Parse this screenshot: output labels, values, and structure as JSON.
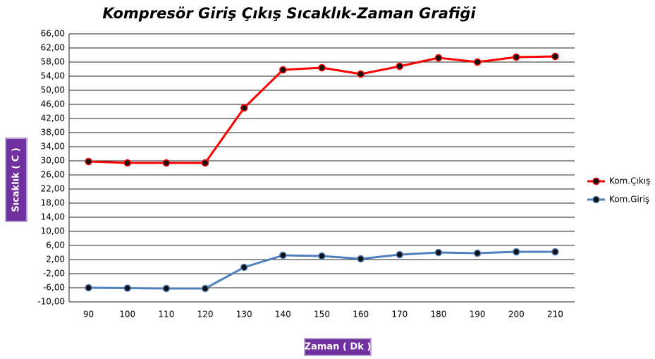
{
  "chart_data": {
    "type": "line",
    "title": "Kompresör Giriş Çıkış Sıcaklık-Zaman Grafiği",
    "x_label": "Zaman ( Dk )",
    "y_label": "Sıcaklık ( C )",
    "categories": [
      "90",
      "100",
      "110",
      "120",
      "130",
      "140",
      "150",
      "160",
      "170",
      "180",
      "190",
      "200",
      "210"
    ],
    "series": [
      {
        "name": "Kom.Çıkış",
        "color": "#ff0000",
        "values": [
          29.8,
          29.4,
          29.4,
          29.4,
          45,
          55.8,
          56.4,
          54.6,
          56.8,
          59.2,
          58,
          59.4,
          59.6
        ]
      },
      {
        "name": "Kom.Giriş",
        "color": "#4f81bd",
        "values": [
          -6,
          -6.1,
          -6.2,
          -6.2,
          -0.2,
          3.2,
          3,
          2.2,
          3.4,
          4,
          3.8,
          4.2,
          4.2
        ]
      }
    ],
    "ylim": [
      -10,
      66
    ],
    "yticks": [
      {
        "value": 66,
        "label": "66,00"
      },
      {
        "value": 62,
        "label": "62,00"
      },
      {
        "value": 58,
        "label": "58,00"
      },
      {
        "value": 54,
        "label": "54,00"
      },
      {
        "value": 50,
        "label": "50,00"
      },
      {
        "value": 46,
        "label": "46,00"
      },
      {
        "value": 42,
        "label": "42,00"
      },
      {
        "value": 38,
        "label": "38,00"
      },
      {
        "value": 34,
        "label": "34,00"
      },
      {
        "value": 30,
        "label": "30,00"
      },
      {
        "value": 26,
        "label": "26,00"
      },
      {
        "value": 22,
        "label": "22,00"
      },
      {
        "value": 18,
        "label": "18,00"
      },
      {
        "value": 14,
        "label": "14,00"
      },
      {
        "value": 10,
        "label": "10,00"
      },
      {
        "value": 6,
        "label": "6,00"
      },
      {
        "value": 2,
        "label": "2,00"
      },
      {
        "value": -2,
        "label": "-2,00"
      },
      {
        "value": -6,
        "label": "-6,00"
      },
      {
        "value": -10,
        "label": "-10,00"
      }
    ],
    "grid": true,
    "legend": "right"
  }
}
